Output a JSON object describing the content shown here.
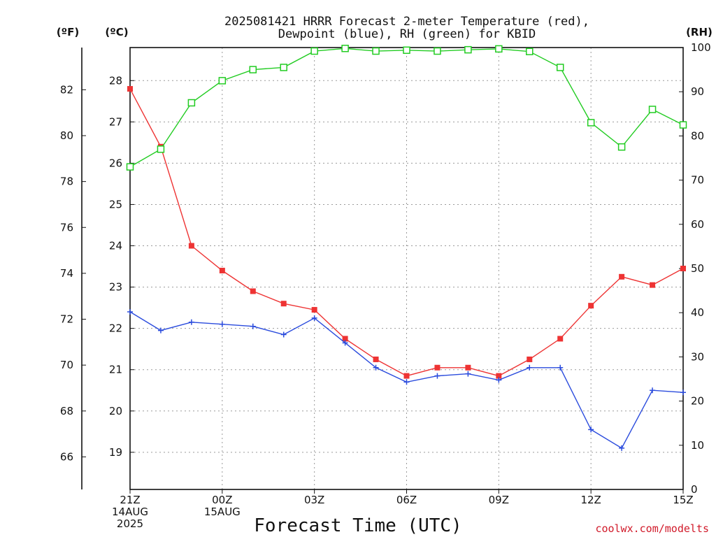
{
  "title_line1": "2025081421 HRRR Forecast 2-meter Temperature (red),",
  "title_line2": "Dewpoint (blue), RH (green) for KBID",
  "units": {
    "fahrenheit": "(ºF)",
    "celsius": "(ºC)",
    "rh": "(RH)"
  },
  "xlabel": "Forecast Time (UTC)",
  "credit": "coolwx.com/modelts",
  "colors": {
    "temperature": "#ee3333",
    "dewpoint": "#2a4bdd",
    "rh": "#22cc22",
    "grid": "#9a9a9a",
    "credit": "#d11a2a"
  },
  "chart_data": {
    "type": "line",
    "title": "2025081421 HRRR Forecast 2-meter Temperature (red), Dewpoint (blue), RH (green) for KBID",
    "xlabel": "Forecast Time (UTC)",
    "x_hours": [
      0,
      1,
      2,
      3,
      4,
      5,
      6,
      7,
      8,
      9,
      10,
      11,
      12,
      13,
      14,
      15,
      16,
      17,
      18
    ],
    "x_ticks": [
      {
        "hour": 0,
        "lines": [
          "21Z",
          "14AUG",
          "2025"
        ]
      },
      {
        "hour": 3,
        "lines": [
          "00Z",
          "15AUG"
        ]
      },
      {
        "hour": 6,
        "lines": [
          "03Z"
        ]
      },
      {
        "hour": 9,
        "lines": [
          "06Z"
        ]
      },
      {
        "hour": 12,
        "lines": [
          "09Z"
        ]
      },
      {
        "hour": 15,
        "lines": [
          "12Z"
        ]
      },
      {
        "hour": 18,
        "lines": [
          "15Z"
        ]
      }
    ],
    "xlim": [
      0,
      18
    ],
    "celsius_axis": {
      "range": [
        18.1,
        28.8
      ],
      "ticks": [
        19,
        20,
        21,
        22,
        23,
        24,
        25,
        26,
        27,
        28
      ]
    },
    "fahrenheit_axis": {
      "ticks": [
        66,
        68,
        70,
        72,
        74,
        76,
        78,
        80,
        82
      ]
    },
    "rh_axis": {
      "range": [
        0,
        100
      ],
      "ticks": [
        0,
        10,
        20,
        30,
        40,
        50,
        60,
        70,
        80,
        90,
        100
      ]
    },
    "grid": true,
    "series": [
      {
        "name": "Temperature",
        "color": "red",
        "axis": "celsius",
        "marker": "square-filled",
        "values": [
          27.8,
          26.4,
          24.0,
          23.4,
          22.9,
          22.6,
          22.45,
          21.75,
          21.25,
          20.85,
          21.05,
          21.05,
          20.85,
          21.25,
          21.75,
          22.55,
          23.25,
          23.05,
          23.45
        ]
      },
      {
        "name": "Dewpoint",
        "color": "blue",
        "axis": "celsius",
        "marker": "plus",
        "values": [
          22.4,
          21.95,
          22.15,
          22.1,
          22.05,
          21.85,
          22.25,
          21.65,
          21.05,
          20.7,
          20.85,
          20.9,
          20.75,
          21.05,
          21.05,
          19.55,
          19.1,
          20.5,
          20.45
        ]
      },
      {
        "name": "RH",
        "color": "green",
        "axis": "rh",
        "marker": "square-open",
        "values": [
          73,
          77,
          87.5,
          92.5,
          95,
          95.5,
          99.2,
          99.8,
          99.2,
          99.4,
          99.2,
          99.5,
          99.7,
          99.1,
          95.5,
          83,
          77.5,
          86,
          82.5
        ]
      }
    ]
  }
}
